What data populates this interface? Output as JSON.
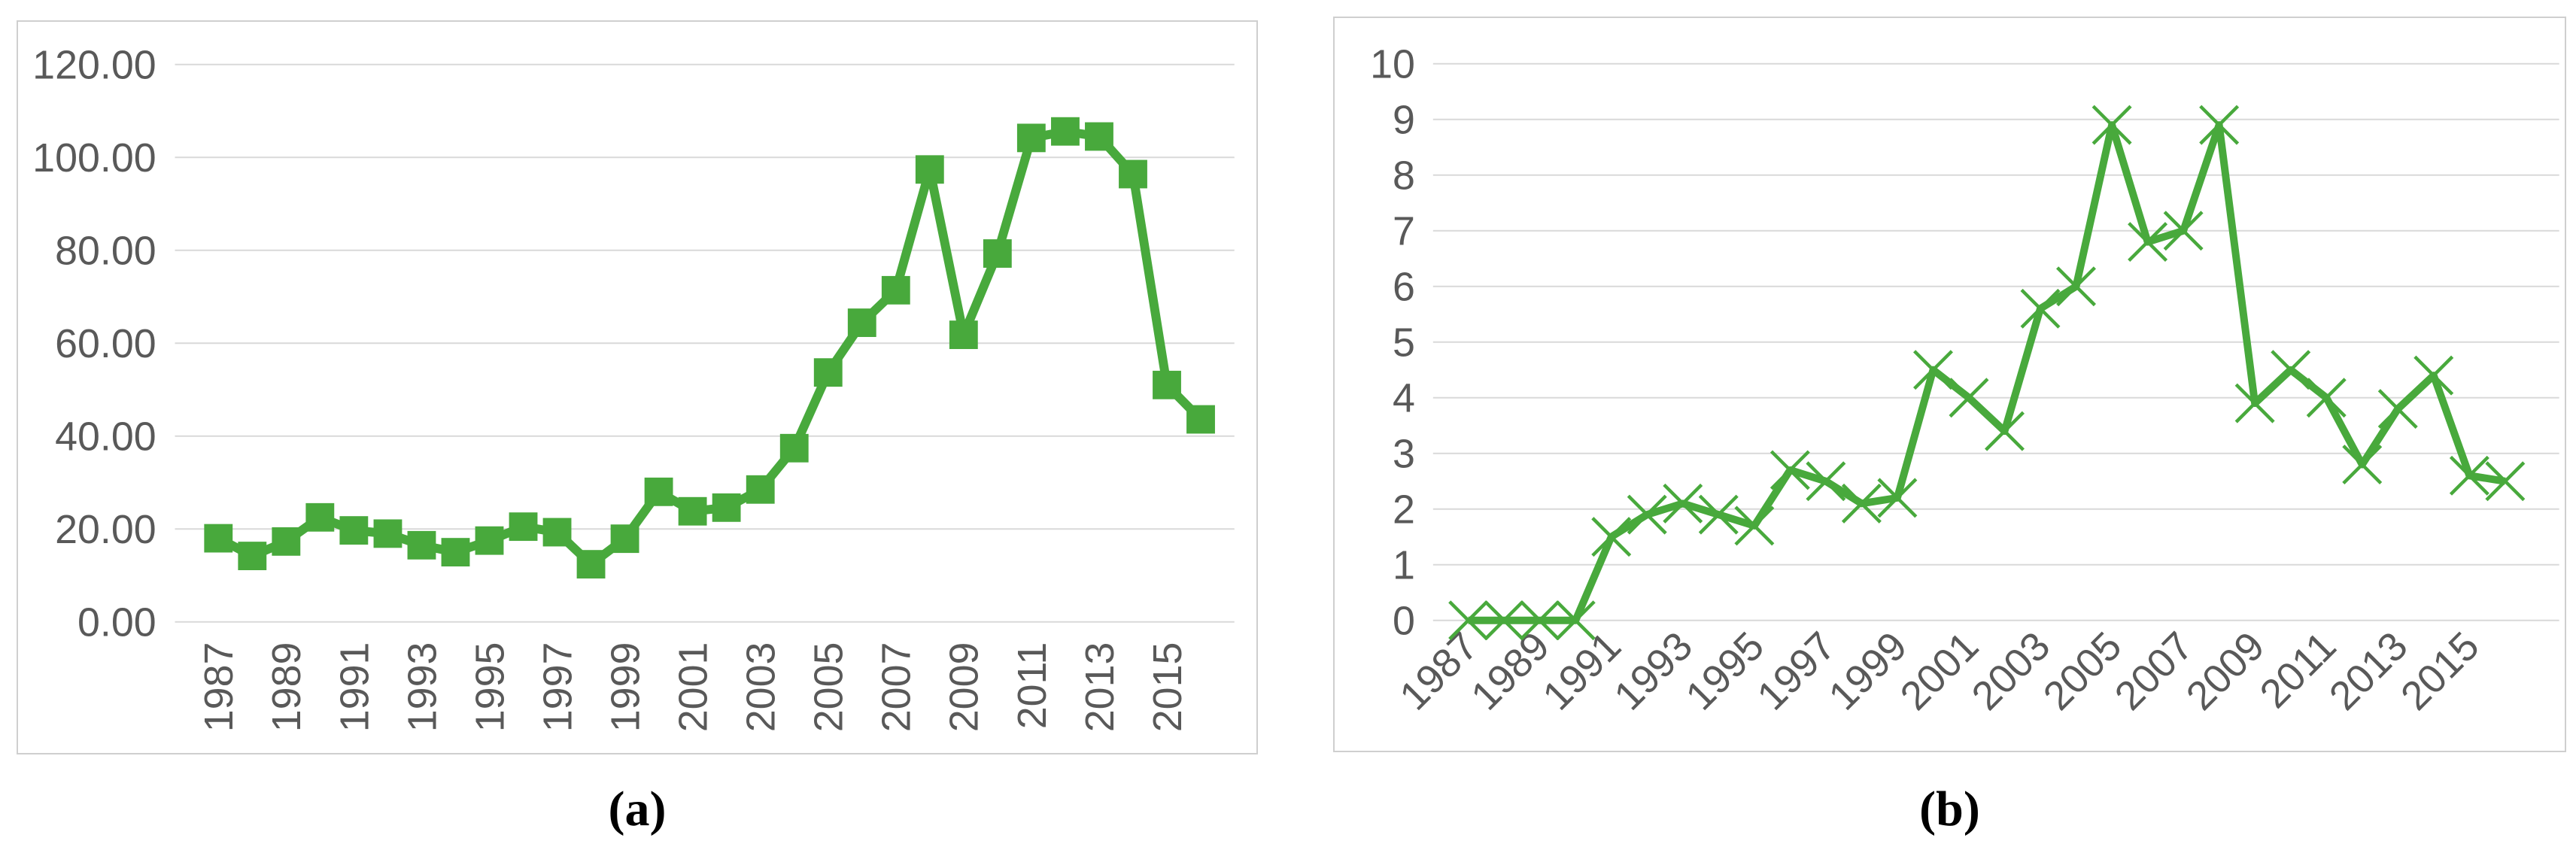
{
  "page": {
    "background": "#ffffff"
  },
  "colors": {
    "series_green": "#48a93c",
    "gridline": "#d9d9d9",
    "axis_text": "#595959",
    "panel_border": "#cfcfcf",
    "caption_text": "#000000"
  },
  "captions": {
    "a": "(a)",
    "b": "(b)"
  },
  "chart_data": [
    {
      "id": "a",
      "type": "line",
      "marker": "square",
      "line_color": "#48a93c",
      "title": "",
      "xlabel": "",
      "ylabel": "",
      "grid": true,
      "legend": "none",
      "ylim": [
        0,
        120
      ],
      "ytick_step": 20,
      "ytick_labels": [
        "0.00",
        "20.00",
        "40.00",
        "60.00",
        "80.00",
        "100.00",
        "120.00"
      ],
      "x_label_rotation": -90,
      "xtick_interval": 2,
      "xtick_labels": [
        "1987",
        "1989",
        "1991",
        "1993",
        "1995",
        "1997",
        "1999",
        "2001",
        "2003",
        "2005",
        "2007",
        "2009",
        "2011",
        "2013",
        "2015"
      ],
      "years": [
        1987,
        1988,
        1989,
        1990,
        1991,
        1992,
        1993,
        1994,
        1995,
        1996,
        1997,
        1998,
        1999,
        2000,
        2001,
        2002,
        2003,
        2004,
        2005,
        2006,
        2007,
        2008,
        2009,
        2010,
        2011,
        2012,
        2013,
        2014,
        2015,
        2016
      ],
      "values": [
        18.0,
        14.2,
        17.3,
        22.5,
        19.7,
        19.0,
        16.5,
        15.0,
        17.5,
        20.5,
        19.3,
        12.4,
        17.9,
        28.0,
        23.8,
        24.6,
        28.5,
        37.4,
        53.7,
        64.4,
        71.4,
        97.4,
        61.8,
        79.3,
        104.2,
        105.6,
        104.5,
        96.4,
        51.0,
        43.6
      ]
    },
    {
      "id": "b",
      "type": "line",
      "marker": "x",
      "line_color": "#48a93c",
      "title": "",
      "xlabel": "",
      "ylabel": "",
      "grid": true,
      "legend": "none",
      "ylim": [
        0,
        10
      ],
      "ytick_step": 1,
      "ytick_labels": [
        "0",
        "1",
        "2",
        "3",
        "4",
        "5",
        "6",
        "7",
        "8",
        "9",
        "10"
      ],
      "x_label_rotation": -45,
      "xtick_interval": 2,
      "xtick_labels": [
        "1987",
        "1989",
        "1991",
        "1993",
        "1995",
        "1997",
        "1999",
        "2001",
        "2003",
        "2005",
        "2007",
        "2009",
        "2011",
        "2013",
        "2015"
      ],
      "years": [
        1987,
        1988,
        1989,
        1990,
        1991,
        1992,
        1993,
        1994,
        1995,
        1996,
        1997,
        1998,
        1999,
        2000,
        2001,
        2002,
        2003,
        2004,
        2005,
        2006,
        2007,
        2008,
        2009,
        2010,
        2011,
        2012,
        2013,
        2014,
        2015,
        2016
      ],
      "values": [
        0,
        0,
        0,
        0,
        1.5,
        1.9,
        2.1,
        1.9,
        1.7,
        2.7,
        2.5,
        2.1,
        2.2,
        4.5,
        4.0,
        3.4,
        5.6,
        6.0,
        8.9,
        6.8,
        7.0,
        8.9,
        3.9,
        4.5,
        4.0,
        2.8,
        3.8,
        4.4,
        2.6,
        2.5
      ]
    }
  ]
}
